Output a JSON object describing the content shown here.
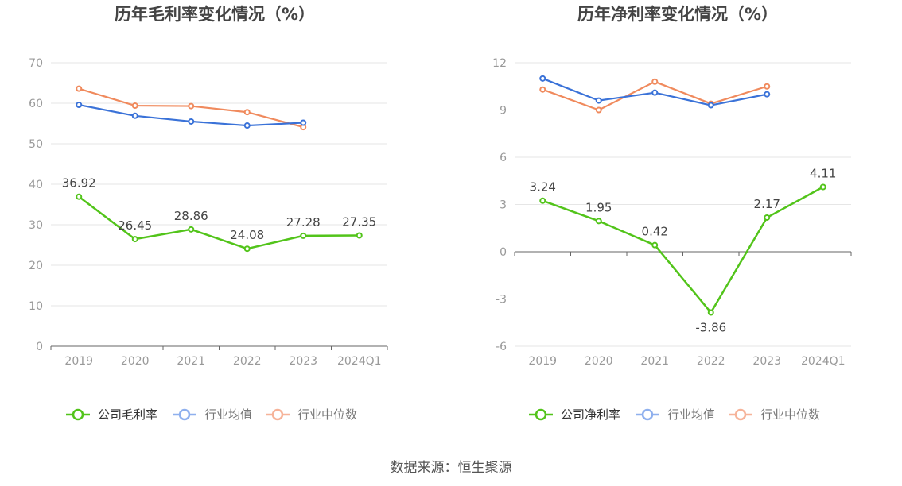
{
  "source": "数据来源：恒生聚源",
  "colors": {
    "company": "#52c41a",
    "industry_avg": "#3a72d8",
    "industry_median": "#f08a5d",
    "legend_avg": "#8fb0ee",
    "legend_median": "#f6b399",
    "grid": "#e6e6e6",
    "axis": "#666666",
    "tick_text": "#999999",
    "label_text": "#444444",
    "title_text": "#444444"
  },
  "chart_data": [
    {
      "type": "line",
      "title": "历年毛利率变化情况（%）",
      "categories": [
        "2019",
        "2020",
        "2021",
        "2022",
        "2023",
        "2024Q1"
      ],
      "yticks": [
        "0",
        "10",
        "20",
        "30",
        "40",
        "50",
        "60",
        "70"
      ],
      "ylim": [
        0,
        70
      ],
      "grid": true,
      "legend_position": "bottom",
      "series": [
        {
          "name": "公司毛利率",
          "values": [
            36.92,
            26.45,
            28.86,
            24.08,
            27.28,
            27.35
          ],
          "labels": [
            "36.92",
            "26.45",
            "28.86",
            "24.08",
            "27.28",
            "27.35"
          ]
        },
        {
          "name": "行业均值",
          "values": [
            59.6,
            56.9,
            55.5,
            54.5,
            55.2,
            null
          ]
        },
        {
          "name": "行业中位数",
          "values": [
            63.6,
            59.4,
            59.3,
            57.8,
            54.1,
            null
          ]
        }
      ]
    },
    {
      "type": "line",
      "title": "历年净利率变化情况（%）",
      "categories": [
        "2019",
        "2020",
        "2021",
        "2022",
        "2023",
        "2024Q1"
      ],
      "yticks": [
        "-6",
        "-3",
        "0",
        "3",
        "6",
        "9",
        "12"
      ],
      "ylim": [
        -6,
        12
      ],
      "grid": true,
      "legend_position": "bottom",
      "series": [
        {
          "name": "公司净利率",
          "values": [
            3.24,
            1.95,
            0.42,
            -3.86,
            2.17,
            4.11
          ],
          "labels": [
            "3.24",
            "1.95",
            "0.42",
            "-3.86",
            "2.17",
            "4.11"
          ]
        },
        {
          "name": "行业均值",
          "values": [
            11.0,
            9.6,
            10.1,
            9.3,
            10.0,
            null
          ]
        },
        {
          "name": "行业中位数",
          "values": [
            10.3,
            9.0,
            10.8,
            9.4,
            10.5,
            null
          ]
        }
      ]
    }
  ]
}
